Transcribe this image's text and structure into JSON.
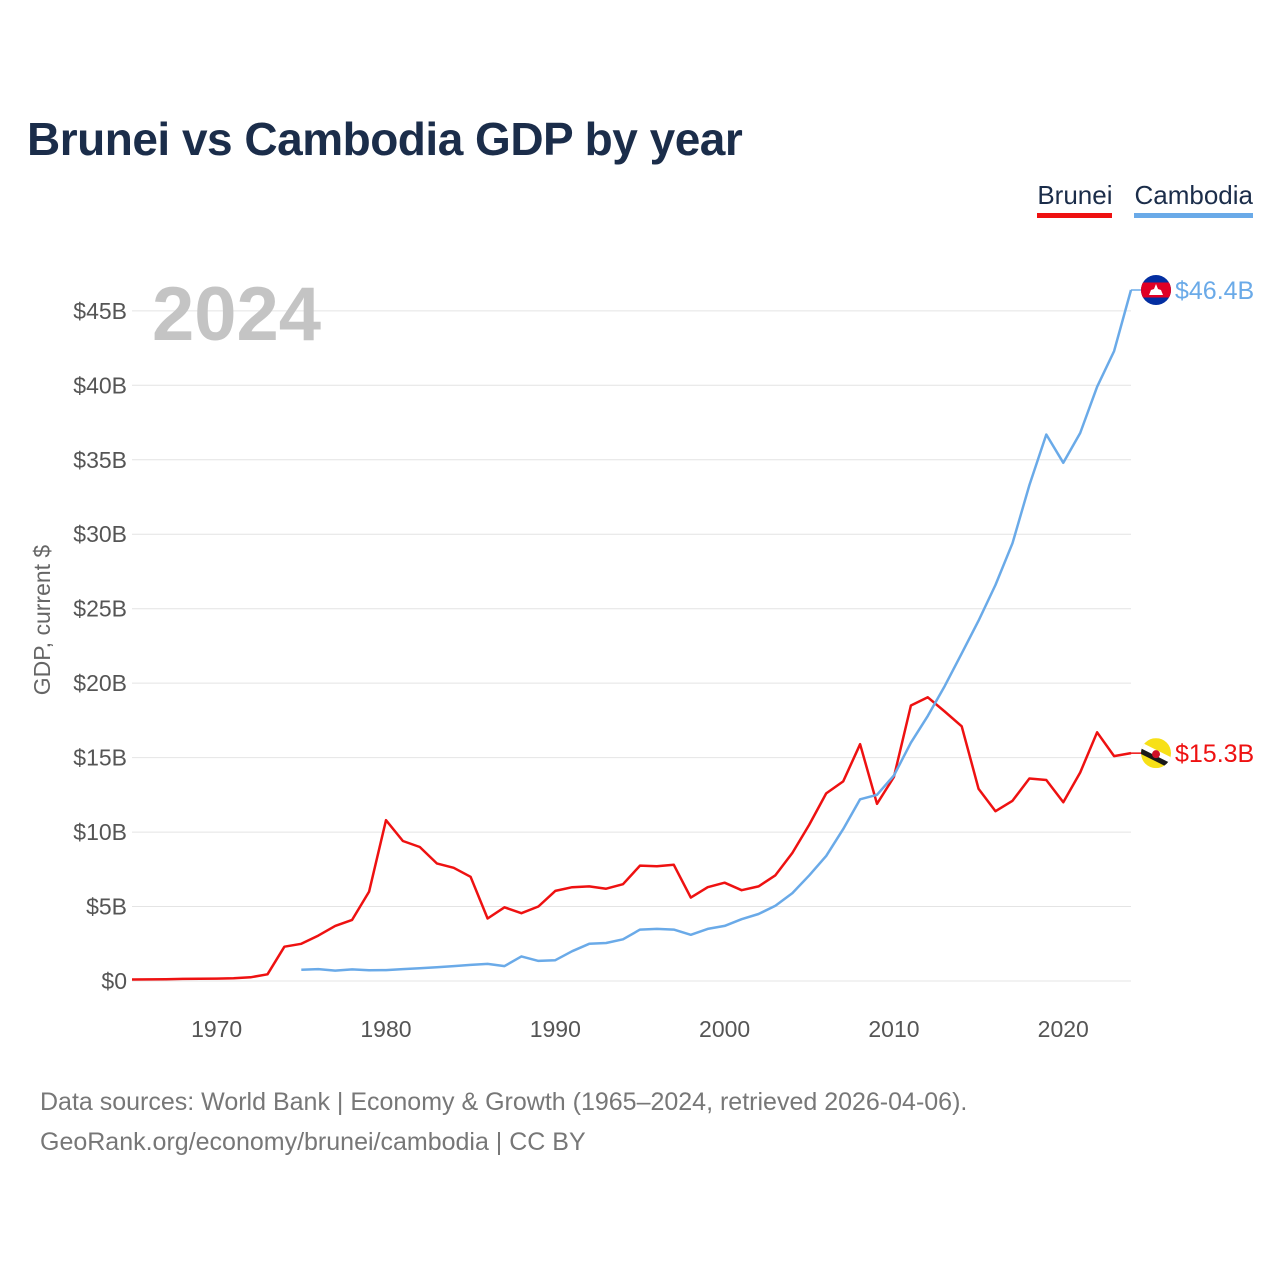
{
  "title": "Brunei vs Cambodia GDP by year",
  "legend": [
    {
      "label": "Brunei",
      "color": "#ee1111"
    },
    {
      "label": "Cambodia",
      "color": "#6aaae8"
    }
  ],
  "watermark_year": "2024",
  "footer": {
    "line1": "Data sources: World Bank | Economy & Growth (1965–2024, retrieved 2026-04-06).",
    "line2": "GeoRank.org/economy/brunei/cambodia | CC BY"
  },
  "chart_data": {
    "type": "line",
    "title": "Brunei vs Cambodia GDP by year",
    "xlabel": "",
    "ylabel": "GDP, current $",
    "xlim": [
      1965,
      2024
    ],
    "ylim": [
      0,
      46.4
    ],
    "y_unit": "billions USD",
    "grid": true,
    "legend_position": "top-right",
    "x_ticks": [
      1970,
      1980,
      1990,
      2000,
      2010,
      2020
    ],
    "x_tick_labels": [
      "1970",
      "1980",
      "1990",
      "2000",
      "2010",
      "2020"
    ],
    "y_ticks": [
      0,
      5,
      10,
      15,
      20,
      25,
      30,
      35,
      40,
      45
    ],
    "y_tick_labels": [
      "$0",
      "$5B",
      "$10B",
      "$15B",
      "$20B",
      "$25B",
      "$30B",
      "$35B",
      "$40B",
      "$45B"
    ],
    "series": [
      {
        "name": "Brunei",
        "color": "#ee1111",
        "end_label": "$15.3B",
        "icon": "brunei-flag-icon",
        "x": [
          1965,
          1966,
          1967,
          1968,
          1969,
          1970,
          1971,
          1972,
          1973,
          1974,
          1975,
          1976,
          1977,
          1978,
          1979,
          1980,
          1981,
          1982,
          1983,
          1984,
          1985,
          1986,
          1987,
          1988,
          1989,
          1990,
          1991,
          1992,
          1993,
          1994,
          1995,
          1996,
          1997,
          1998,
          1999,
          2000,
          2001,
          2002,
          2003,
          2004,
          2005,
          2006,
          2007,
          2008,
          2009,
          2010,
          2011,
          2012,
          2013,
          2014,
          2015,
          2016,
          2017,
          2018,
          2019,
          2020,
          2021,
          2022,
          2023,
          2024
        ],
        "values": [
          0.1,
          0.11,
          0.12,
          0.14,
          0.15,
          0.16,
          0.18,
          0.25,
          0.45,
          2.3,
          2.5,
          3.05,
          3.7,
          4.1,
          6.0,
          10.8,
          9.4,
          9.0,
          7.9,
          7.6,
          7.0,
          4.2,
          4.95,
          4.55,
          5.0,
          6.05,
          6.3,
          6.35,
          6.2,
          6.5,
          7.75,
          7.7,
          7.8,
          5.6,
          6.3,
          6.6,
          6.1,
          6.35,
          7.1,
          8.6,
          10.5,
          12.6,
          13.4,
          15.9,
          11.9,
          13.7,
          18.5,
          19.05,
          18.1,
          17.1,
          12.9,
          11.4,
          12.1,
          13.6,
          13.5,
          12.0,
          14.0,
          16.7,
          15.1,
          15.3
        ]
      },
      {
        "name": "Cambodia",
        "color": "#6aaae8",
        "end_label": "$46.4B",
        "icon": "cambodia-flag-icon",
        "x": [
          1975,
          1976,
          1977,
          1978,
          1979,
          1980,
          1981,
          1982,
          1983,
          1984,
          1985,
          1986,
          1987,
          1988,
          1989,
          1990,
          1991,
          1992,
          1993,
          1994,
          1995,
          1996,
          1997,
          1998,
          1999,
          2000,
          2001,
          2002,
          2003,
          2004,
          2005,
          2006,
          2007,
          2008,
          2009,
          2010,
          2011,
          2012,
          2013,
          2014,
          2015,
          2016,
          2017,
          2018,
          2019,
          2020,
          2021,
          2022,
          2023,
          2024
        ],
        "values": [
          0.75,
          0.8,
          0.7,
          0.78,
          0.72,
          0.73,
          0.8,
          0.86,
          0.93,
          1.0,
          1.08,
          1.15,
          1.0,
          1.65,
          1.35,
          1.4,
          2.0,
          2.5,
          2.55,
          2.8,
          3.45,
          3.5,
          3.45,
          3.1,
          3.5,
          3.7,
          4.15,
          4.5,
          5.05,
          5.9,
          7.1,
          8.4,
          10.2,
          12.2,
          12.5,
          13.8,
          16.0,
          17.8,
          19.8,
          22.0,
          24.2,
          26.6,
          29.4,
          33.3,
          36.7,
          34.8,
          36.8,
          39.9,
          42.3,
          46.4
        ]
      }
    ]
  }
}
